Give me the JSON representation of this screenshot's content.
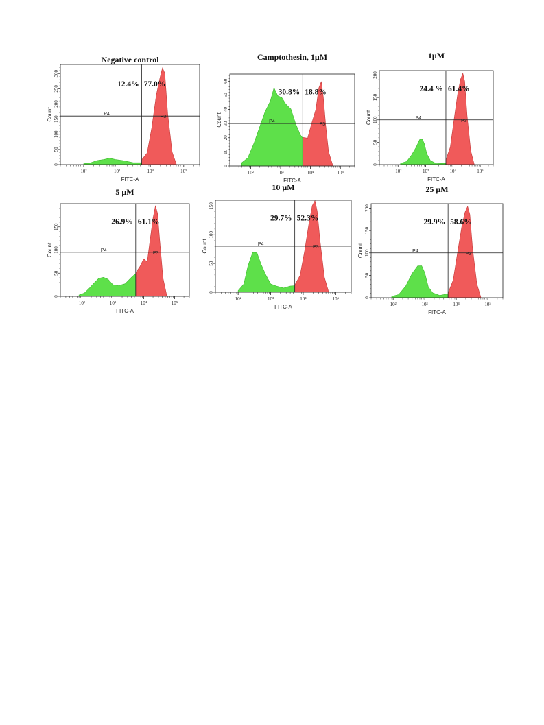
{
  "chart_data": [
    {
      "type": "area",
      "title": "Negative control",
      "xlabel": "FITC-A",
      "ylabel": "Count",
      "x_scale": "log",
      "xlim": [
        20,
        300000
      ],
      "ylim": [
        0,
        330
      ],
      "y_ticks": [
        0,
        50,
        100,
        150,
        200,
        250,
        300
      ],
      "x_ticks": [
        "10²",
        "10³",
        "10⁴",
        "10⁵"
      ],
      "gate_line_y": 160,
      "gate_divider_x": 5500,
      "gate_labels": [
        "P4",
        "P3"
      ],
      "percentages": [
        "12.4%",
        "77.0%"
      ],
      "series": [
        {
          "color": "#5ee04a",
          "x": [
            100,
            150,
            250,
            400,
            600,
            900,
            1500,
            3000,
            5500
          ],
          "y": [
            2,
            6,
            12,
            18,
            20,
            18,
            12,
            8,
            5
          ]
        },
        {
          "color": "#f05a5a",
          "x": [
            5500,
            8000,
            11000,
            15000,
            19000,
            23000,
            27000,
            33000,
            45000,
            60000
          ],
          "y": [
            15,
            40,
            120,
            230,
            280,
            320,
            300,
            170,
            40,
            3
          ]
        }
      ]
    },
    {
      "type": "area",
      "title": "Camptothesin, 1μM",
      "xlabel": "FITC-A",
      "ylabel": "Count",
      "x_scale": "log",
      "xlim": [
        20,
        300000
      ],
      "ylim": [
        0,
        65
      ],
      "y_ticks": [
        0,
        10,
        20,
        30,
        40,
        50,
        60
      ],
      "x_ticks": [
        "10²",
        "10³",
        "10⁴",
        "10⁵"
      ],
      "gate_line_y": 30,
      "gate_divider_x": 5500,
      "gate_labels": [
        "P4",
        "P3"
      ],
      "percentages": [
        "30.8%",
        "18.8%"
      ],
      "series": [
        {
          "color": "#5ee04a",
          "x": [
            50,
            80,
            130,
            200,
            300,
            450,
            600,
            800,
            1100,
            1500,
            2200,
            3200,
            4500,
            5500
          ],
          "y": [
            2,
            6,
            16,
            28,
            38,
            46,
            55,
            50,
            48,
            44,
            40,
            30,
            22,
            20
          ]
        },
        {
          "color": "#f05a5a",
          "x": [
            5500,
            8000,
            11000,
            15000,
            19000,
            23000,
            27000,
            32000,
            40000,
            55000
          ],
          "y": [
            20,
            20,
            30,
            40,
            55,
            60,
            48,
            30,
            10,
            1
          ]
        }
      ]
    },
    {
      "type": "area",
      "title": "1μM",
      "xlabel": "FITC-A",
      "ylabel": "Count",
      "x_scale": "log",
      "xlim": [
        20,
        300000
      ],
      "ylim": [
        0,
        210
      ],
      "y_ticks": [
        0,
        50,
        100,
        150,
        200
      ],
      "x_ticks": [
        "10²",
        "10³",
        "10⁴",
        "10⁵"
      ],
      "gate_line_y": 100,
      "gate_divider_x": 5500,
      "gate_labels": [
        "P4",
        "P3"
      ],
      "percentages": [
        "24.4 %",
        "61.4%"
      ],
      "series": [
        {
          "color": "#5ee04a",
          "x": [
            120,
            200,
            300,
            450,
            600,
            750,
            900,
            1100,
            1500,
            2500,
            5500
          ],
          "y": [
            2,
            8,
            20,
            40,
            55,
            58,
            45,
            25,
            8,
            3,
            2
          ]
        },
        {
          "color": "#f05a5a",
          "x": [
            5500,
            8000,
            11000,
            15000,
            19000,
            23000,
            27000,
            33000,
            45000,
            60000
          ],
          "y": [
            10,
            40,
            100,
            160,
            190,
            205,
            185,
            110,
            30,
            2
          ]
        }
      ]
    },
    {
      "type": "area",
      "title": "5 μM",
      "xlabel": "FITC-A",
      "ylabel": "Count",
      "x_scale": "log",
      "xlim": [
        20,
        300000
      ],
      "ylim": [
        0,
        200
      ],
      "y_ticks": [
        0,
        50,
        100,
        150
      ],
      "x_ticks": [
        "10²",
        "10³",
        "10⁴",
        "10⁵"
      ],
      "gate_line_y": 95,
      "gate_divider_x": 5500,
      "gate_labels": [
        "P4",
        "P3"
      ],
      "percentages": [
        "26.9%",
        "61.1%"
      ],
      "series": [
        {
          "color": "#5ee04a",
          "x": [
            80,
            120,
            180,
            250,
            350,
            500,
            700,
            1000,
            1500,
            2500,
            4000,
            5500
          ],
          "y": [
            2,
            8,
            18,
            30,
            38,
            42,
            36,
            26,
            22,
            28,
            40,
            50
          ]
        },
        {
          "color": "#f05a5a",
          "x": [
            5500,
            7500,
            10000,
            13000,
            16000,
            20000,
            24000,
            28000,
            33000,
            42000,
            55000
          ],
          "y": [
            50,
            65,
            80,
            75,
            120,
            170,
            195,
            180,
            120,
            40,
            3
          ]
        }
      ]
    },
    {
      "type": "area",
      "title": "10 μM",
      "xlabel": "FITC-A",
      "ylabel": "Count",
      "x_scale": "log",
      "xlim": [
        20,
        300000
      ],
      "ylim": [
        0,
        160
      ],
      "y_ticks": [
        0,
        50,
        100,
        150
      ],
      "x_ticks": [
        "10²",
        "10³",
        "10⁴",
        "10⁵"
      ],
      "gate_line_y": 80,
      "gate_divider_x": 5500,
      "gate_labels": [
        "P4",
        "P3"
      ],
      "percentages": [
        "29.7%",
        "52.3%"
      ],
      "series": [
        {
          "color": "#5ee04a",
          "x": [
            100,
            150,
            200,
            280,
            380,
            500,
            700,
            1000,
            1500,
            2500,
            4000,
            5500
          ],
          "y": [
            2,
            15,
            45,
            70,
            68,
            50,
            30,
            15,
            10,
            8,
            10,
            12
          ]
        },
        {
          "color": "#f05a5a",
          "x": [
            5500,
            8000,
            11000,
            15000,
            19000,
            23000,
            27000,
            33000,
            45000,
            60000
          ],
          "y": [
            12,
            30,
            70,
            120,
            150,
            160,
            140,
            90,
            25,
            2
          ]
        }
      ]
    },
    {
      "type": "area",
      "title": "25 μM",
      "xlabel": "FITC-A",
      "ylabel": "Count",
      "x_scale": "log",
      "xlim": [
        20,
        300000
      ],
      "ylim": [
        0,
        210
      ],
      "y_ticks": [
        0,
        50,
        100,
        150,
        200
      ],
      "x_ticks": [
        "10²",
        "10³",
        "10⁴",
        "10⁵"
      ],
      "gate_line_y": 100,
      "gate_divider_x": 5500,
      "gate_labels": [
        "P4",
        "P3"
      ],
      "percentages": [
        "29.9%",
        "58.6%"
      ],
      "series": [
        {
          "color": "#5ee04a",
          "x": [
            90,
            150,
            250,
            400,
            600,
            800,
            1000,
            1300,
            1800,
            3000,
            5500
          ],
          "y": [
            2,
            8,
            25,
            55,
            70,
            72,
            55,
            25,
            10,
            6,
            8
          ]
        },
        {
          "color": "#f05a5a",
          "x": [
            5500,
            8000,
            11000,
            15000,
            19000,
            23000,
            27000,
            33000,
            45000,
            60000
          ],
          "y": [
            10,
            40,
            100,
            160,
            190,
            205,
            185,
            110,
            30,
            2
          ]
        }
      ]
    }
  ]
}
